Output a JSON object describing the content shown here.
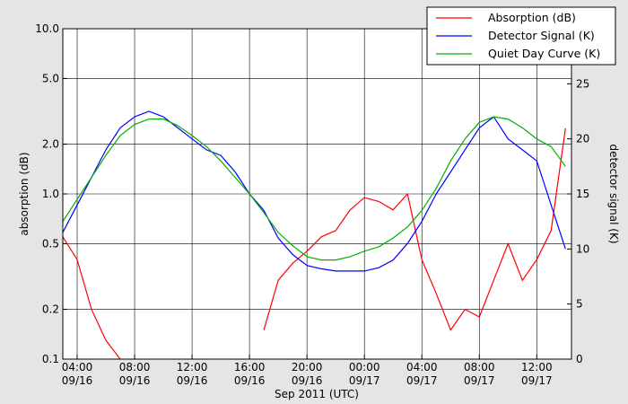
{
  "chart_data": {
    "type": "line",
    "x_label": "Sep 2011 (UTC)",
    "y_label": "absorption (dB)",
    "y2_label": "detector signal (K)",
    "log_y": true,
    "grid": true,
    "legend": "upper right",
    "x": [
      "2011-09-16T03:00",
      "2011-09-16T04:00",
      "2011-09-16T05:00",
      "2011-09-16T06:00",
      "2011-09-16T07:00",
      "2011-09-16T08:00",
      "2011-09-16T09:00",
      "2011-09-16T10:00",
      "2011-09-16T11:00",
      "2011-09-16T12:00",
      "2011-09-16T13:00",
      "2011-09-16T14:00",
      "2011-09-16T15:00",
      "2011-09-16T16:00",
      "2011-09-16T17:00",
      "2011-09-16T18:00",
      "2011-09-16T19:00",
      "2011-09-16T20:00",
      "2011-09-16T21:00",
      "2011-09-16T22:00",
      "2011-09-16T23:00",
      "2011-09-17T00:00",
      "2011-09-17T01:00",
      "2011-09-17T02:00",
      "2011-09-17T03:00",
      "2011-09-17T04:00",
      "2011-09-17T05:00",
      "2011-09-17T06:00",
      "2011-09-17T07:00",
      "2011-09-17T08:00",
      "2011-09-17T09:00",
      "2011-09-17T10:00",
      "2011-09-17T11:00",
      "2011-09-17T12:00",
      "2011-09-17T13:00",
      "2011-09-17T14:00"
    ],
    "xlim": [
      "2011-09-16T03:00",
      "2011-09-17T14:25"
    ],
    "xticks": [
      {
        "value": "2011-09-16T04:00",
        "label": [
          "04:00",
          "09/16"
        ]
      },
      {
        "value": "2011-09-16T08:00",
        "label": [
          "08:00",
          "09/16"
        ]
      },
      {
        "value": "2011-09-16T12:00",
        "label": [
          "12:00",
          "09/16"
        ]
      },
      {
        "value": "2011-09-16T16:00",
        "label": [
          "16:00",
          "09/16"
        ]
      },
      {
        "value": "2011-09-16T20:00",
        "label": [
          "20:00",
          "09/16"
        ]
      },
      {
        "value": "2011-09-17T00:00",
        "label": [
          "00:00",
          "09/17"
        ]
      },
      {
        "value": "2011-09-17T04:00",
        "label": [
          "04:00",
          "09/17"
        ]
      },
      {
        "value": "2011-09-17T08:00",
        "label": [
          "08:00",
          "09/17"
        ]
      },
      {
        "value": "2011-09-17T12:00",
        "label": [
          "12:00",
          "09/17"
        ]
      }
    ],
    "ylim": [
      0.1,
      10
    ],
    "yticks": [
      0.1,
      0.2,
      0.5,
      {
        "value": 1,
        "label": "1.0"
      },
      {
        "value": 2,
        "label": "2.0"
      },
      {
        "value": 5,
        "label": "5.0"
      },
      {
        "value": 10,
        "label": "10.0"
      }
    ],
    "y2lim": [
      0,
      30
    ],
    "y2ticks": [
      0,
      5,
      10,
      15,
      20,
      25
    ],
    "series": [
      {
        "name": "Absorption (dB)",
        "color": "#ff0000",
        "axis": "y",
        "values": [
          0.55,
          0.4,
          0.2,
          0.13,
          0.1,
          null,
          null,
          null,
          null,
          null,
          null,
          null,
          null,
          null,
          0.15,
          0.3,
          0.38,
          0.45,
          0.55,
          0.6,
          0.8,
          0.95,
          0.9,
          0.8,
          1.0,
          0.4,
          0.25,
          0.15,
          0.2,
          0.18,
          0.3,
          0.5,
          0.3,
          0.4,
          0.6,
          2.5
        ]
      },
      {
        "name": "Detector Signal (K)",
        "color": "#0000ff",
        "axis": "y2",
        "values": [
          11.5,
          14,
          16.5,
          19,
          21,
          22,
          22.5,
          22,
          21,
          20,
          19,
          18.5,
          17,
          15,
          13.5,
          11,
          9.5,
          8.5,
          8.2,
          8,
          8,
          8,
          8.3,
          9,
          10.5,
          12.5,
          15,
          17,
          19,
          21,
          22,
          20,
          19,
          18,
          14,
          10
        ]
      },
      {
        "name": "Quiet Day Curve (K)",
        "color": "#00b000",
        "axis": "y2",
        "values": [
          12.5,
          14.5,
          16.5,
          18.5,
          20.3,
          21.3,
          21.8,
          21.8,
          21.2,
          20.3,
          19.3,
          18,
          16.5,
          15,
          13.3,
          11.5,
          10.3,
          9.3,
          9,
          9,
          9.3,
          9.8,
          10.2,
          11,
          12,
          13.5,
          15.5,
          18,
          20,
          21.5,
          22,
          21.8,
          21,
          20,
          19.3,
          17.5
        ]
      }
    ]
  }
}
